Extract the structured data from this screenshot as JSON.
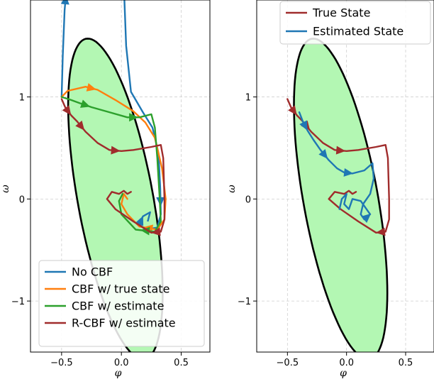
{
  "chart_data": [
    {
      "type": "line",
      "xlabel": "φ",
      "ylabel": "ω",
      "xlim": [
        -0.76,
        0.74
      ],
      "ylim": [
        -1.5,
        1.95
      ],
      "x_ticks": [
        {
          "v": -0.5,
          "label": "−0.5"
        },
        {
          "v": 0.0,
          "label": "0.0"
        },
        {
          "v": 0.5,
          "label": "0.5"
        }
      ],
      "y_ticks": [
        {
          "v": -1,
          "label": "−1"
        },
        {
          "v": 0,
          "label": "0"
        },
        {
          "v": 1,
          "label": "1"
        }
      ],
      "grid": true,
      "safe_set": {
        "shape": "ellipse",
        "fill": "#b3f7b3",
        "edge": "#000000"
      },
      "legend": {
        "placement": "lower-left",
        "entries": [
          {
            "label": "No CBF",
            "color": "#1f77b4"
          },
          {
            "label": "CBF w/ true state",
            "color": "#ff7f0e"
          },
          {
            "label": "CBF w/ estimate",
            "color": "#2ca02c"
          },
          {
            "label": "R-CBF w/ estimate",
            "color": "#a02c2c"
          }
        ]
      },
      "series": [
        {
          "name": "No CBF",
          "color": "#1f77b4",
          "points": [
            [
              -0.5,
              1.0
            ],
            [
              -0.49,
              1.4
            ],
            [
              -0.475,
              1.85
            ],
            [
              -0.46,
              2.05
            ],
            [
              -0.42,
              2.3
            ]
          ],
          "points2": [
            [
              0.02,
              2.1
            ],
            [
              0.04,
              1.5
            ],
            [
              0.08,
              1.05
            ],
            [
              0.18,
              0.85
            ],
            [
              0.26,
              0.7
            ],
            [
              0.31,
              0.45
            ],
            [
              0.325,
              0.1
            ],
            [
              0.33,
              -0.15
            ],
            [
              0.3,
              -0.28
            ],
            [
              0.2,
              -0.3
            ],
            [
              0.15,
              -0.25
            ],
            [
              0.18,
              -0.17
            ],
            [
              0.24,
              -0.13
            ],
            [
              0.22,
              -0.22
            ]
          ],
          "arrows": [
            {
              "i": 2,
              "set": 1
            },
            {
              "i": 6,
              "set": 2
            },
            {
              "i": 10,
              "set": 2
            }
          ]
        },
        {
          "name": "CBF w/ true state",
          "color": "#ff7f0e",
          "points": [
            [
              -0.5,
              1.0
            ],
            [
              -0.45,
              1.06
            ],
            [
              -0.3,
              1.1
            ],
            [
              -0.2,
              1.07
            ],
            [
              -0.05,
              0.97
            ],
            [
              0.1,
              0.86
            ],
            [
              0.2,
              0.75
            ],
            [
              0.28,
              0.6
            ],
            [
              0.34,
              0.3
            ],
            [
              0.37,
              0.0
            ],
            [
              0.36,
              -0.2
            ],
            [
              0.3,
              -0.3
            ],
            [
              0.15,
              -0.27
            ],
            [
              0.05,
              -0.15
            ],
            [
              0.0,
              -0.05
            ],
            [
              0.02,
              0.05
            ],
            [
              0.05,
              0.0
            ]
          ],
          "arrows": [
            2,
            11
          ]
        },
        {
          "name": "CBF w/ estimate",
          "color": "#2ca02c",
          "points": [
            [
              -0.5,
              1.0
            ],
            [
              -0.42,
              0.97
            ],
            [
              -0.35,
              0.94
            ],
            [
              -0.25,
              0.9
            ],
            [
              -0.1,
              0.85
            ],
            [
              0.05,
              0.8
            ],
            [
              0.15,
              0.8
            ],
            [
              0.25,
              0.83
            ],
            [
              0.28,
              0.7
            ],
            [
              0.3,
              0.4
            ],
            [
              0.32,
              0.0
            ],
            [
              0.33,
              -0.22
            ],
            [
              0.28,
              -0.32
            ],
            [
              0.12,
              -0.3
            ],
            [
              0.0,
              -0.15
            ],
            [
              -0.02,
              -0.02
            ],
            [
              0.01,
              0.05
            ]
          ],
          "arrows": [
            2,
            5,
            12
          ]
        },
        {
          "name": "R-CBF w/ estimate",
          "color": "#a02c2c",
          "points": [
            [
              -0.5,
              0.98
            ],
            [
              -0.47,
              0.9
            ],
            [
              -0.42,
              0.82
            ],
            [
              -0.37,
              0.76
            ],
            [
              -0.3,
              0.66
            ],
            [
              -0.2,
              0.55
            ],
            [
              -0.1,
              0.48
            ],
            [
              0.0,
              0.47
            ],
            [
              0.1,
              0.48
            ],
            [
              0.25,
              0.51
            ],
            [
              0.33,
              0.53
            ],
            [
              0.35,
              0.4
            ],
            [
              0.36,
              0.0
            ],
            [
              0.36,
              -0.2
            ],
            [
              0.33,
              -0.32
            ],
            [
              0.25,
              -0.33
            ],
            [
              0.1,
              -0.22
            ],
            [
              -0.05,
              -0.1
            ],
            [
              -0.12,
              0.0
            ],
            [
              -0.08,
              0.07
            ],
            [
              -0.02,
              0.05
            ],
            [
              0.02,
              0.08
            ],
            [
              0.05,
              0.05
            ],
            [
              0.08,
              0.07
            ]
          ],
          "arrows": [
            1,
            3,
            6,
            14
          ]
        }
      ]
    },
    {
      "type": "line",
      "xlabel": "φ",
      "ylabel": "ω",
      "xlim": [
        -0.76,
        0.74
      ],
      "ylim": [
        -1.5,
        1.95
      ],
      "x_ticks": [
        {
          "v": -0.5,
          "label": "−0.5"
        },
        {
          "v": 0.0,
          "label": "0.0"
        },
        {
          "v": 0.5,
          "label": "0.5"
        }
      ],
      "y_ticks": [
        {
          "v": -1,
          "label": "−1"
        },
        {
          "v": 0,
          "label": "0"
        },
        {
          "v": 1,
          "label": "1"
        }
      ],
      "grid": true,
      "safe_set": {
        "shape": "ellipse",
        "fill": "#b3f7b3",
        "edge": "#000000"
      },
      "legend": {
        "placement": "upper-right",
        "entries": [
          {
            "label": "True State",
            "color": "#a02c2c"
          },
          {
            "label": "Estimated State",
            "color": "#1f77b4"
          }
        ]
      },
      "series": [
        {
          "name": "True State",
          "color": "#a02c2c",
          "points": [
            [
              -0.5,
              0.98
            ],
            [
              -0.47,
              0.9
            ],
            [
              -0.42,
              0.82
            ],
            [
              -0.37,
              0.76
            ],
            [
              -0.3,
              0.66
            ],
            [
              -0.2,
              0.55
            ],
            [
              -0.1,
              0.48
            ],
            [
              0.0,
              0.47
            ],
            [
              0.1,
              0.48
            ],
            [
              0.25,
              0.51
            ],
            [
              0.33,
              0.53
            ],
            [
              0.35,
              0.4
            ],
            [
              0.36,
              0.0
            ],
            [
              0.36,
              -0.2
            ],
            [
              0.33,
              -0.32
            ],
            [
              0.25,
              -0.33
            ],
            [
              0.1,
              -0.22
            ],
            [
              -0.05,
              -0.1
            ],
            [
              -0.15,
              0.0
            ],
            [
              -0.1,
              0.07
            ],
            [
              -0.02,
              0.05
            ],
            [
              0.02,
              0.08
            ],
            [
              0.05,
              0.05
            ],
            [
              0.08,
              0.07
            ]
          ],
          "arrows": [
            1,
            3,
            6,
            14
          ]
        },
        {
          "name": "Estimated State",
          "color": "#1f77b4",
          "points": [
            [
              -0.4,
              0.85
            ],
            [
              -0.37,
              0.76
            ],
            [
              -0.33,
              0.67
            ],
            [
              -0.28,
              0.58
            ],
            [
              -0.22,
              0.48
            ],
            [
              -0.15,
              0.38
            ],
            [
              -0.08,
              0.3
            ],
            [
              -0.02,
              0.26
            ],
            [
              0.05,
              0.25
            ],
            [
              0.15,
              0.28
            ],
            [
              0.22,
              0.35
            ],
            [
              0.23,
              0.2
            ],
            [
              0.2,
              0.05
            ],
            [
              0.14,
              -0.05
            ],
            [
              0.12,
              -0.15
            ],
            [
              0.15,
              -0.2
            ],
            [
              0.2,
              -0.15
            ],
            [
              0.12,
              -0.02
            ],
            [
              0.05,
              0.0
            ],
            [
              0.02,
              -0.1
            ],
            [
              -0.02,
              -0.05
            ],
            [
              0.0,
              0.05
            ],
            [
              -0.04,
              0.0
            ],
            [
              -0.06,
              -0.1
            ]
          ],
          "arrows": [
            1,
            4,
            7,
            15
          ]
        }
      ]
    }
  ]
}
